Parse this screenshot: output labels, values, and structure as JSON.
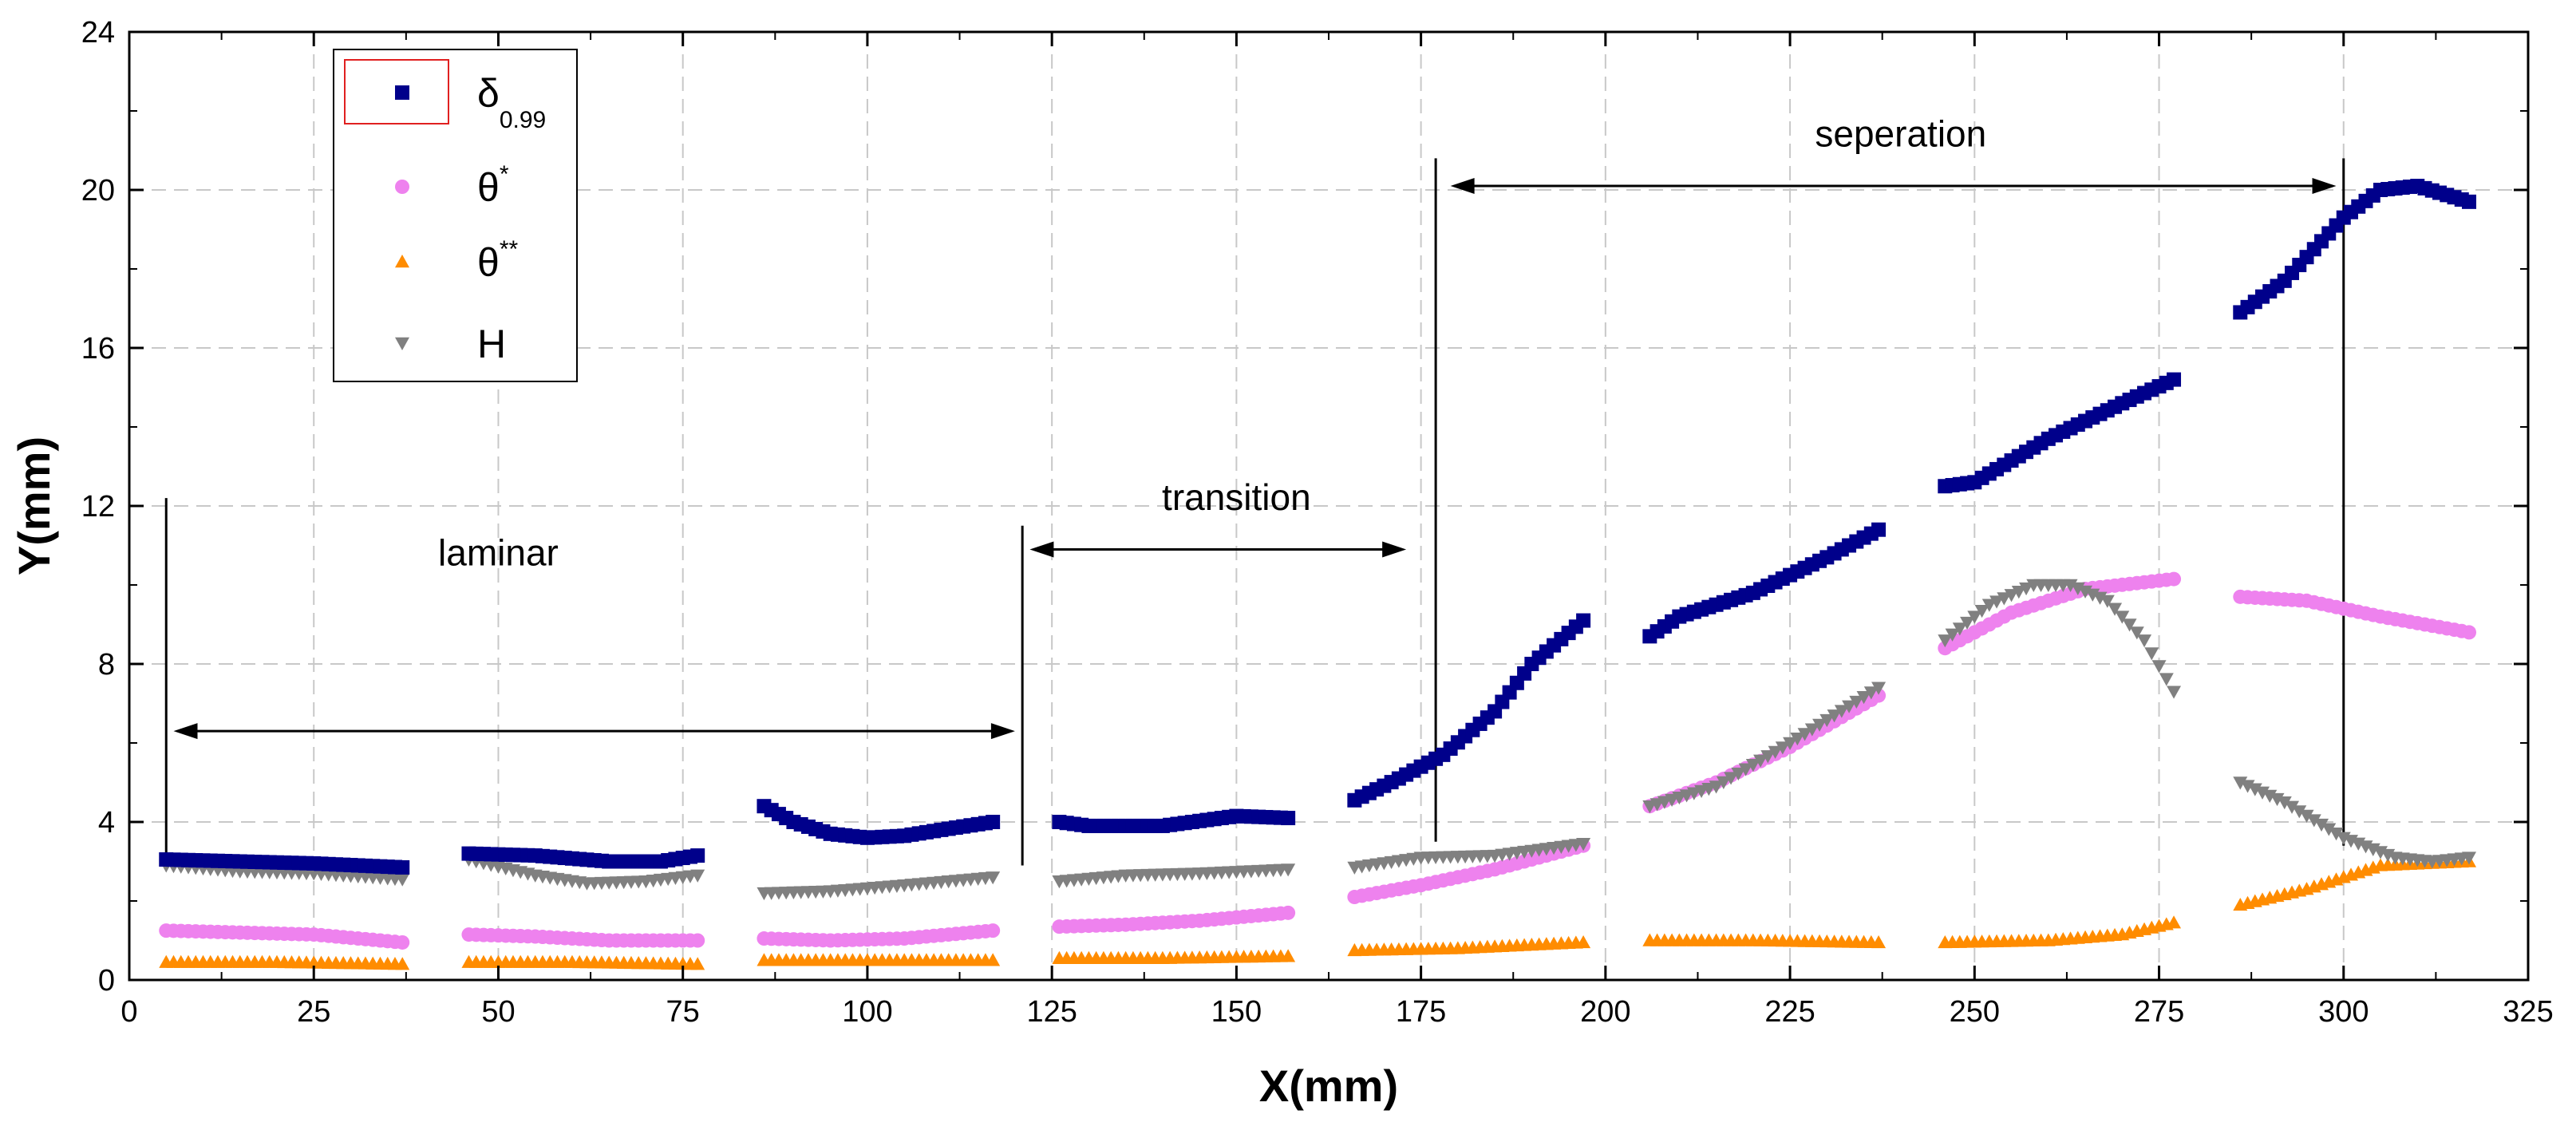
{
  "chart_data": {
    "type": "scatter",
    "title": "",
    "xlabel": "X(mm)",
    "ylabel": "Y(mm)",
    "xlim": [
      0,
      325
    ],
    "ylim": [
      0,
      24
    ],
    "xticks": [
      0,
      25,
      50,
      75,
      100,
      125,
      150,
      175,
      200,
      225,
      250,
      275,
      300,
      325
    ],
    "yticks": [
      0,
      4,
      8,
      12,
      16,
      20,
      24
    ],
    "grid": true,
    "legend_position": "top-left",
    "series": [
      {
        "name": "δ0.99",
        "label_main": "δ",
        "label_sub": "0.99",
        "label_sup": "",
        "color": "#00008B",
        "marker": "square",
        "segments": [
          [
            [
              5,
              3.05
            ],
            [
              15,
              3.0
            ],
            [
              25,
              2.95
            ],
            [
              37,
              2.85
            ]
          ],
          [
            [
              46,
              3.2
            ],
            [
              55,
              3.15
            ],
            [
              65,
              3.0
            ],
            [
              72,
              3.0
            ],
            [
              77,
              3.15
            ]
          ],
          [
            [
              86,
              4.4
            ],
            [
              90,
              4.0
            ],
            [
              95,
              3.7
            ],
            [
              100,
              3.6
            ],
            [
              105,
              3.65
            ],
            [
              110,
              3.8
            ],
            [
              117,
              4.0
            ]
          ],
          [
            [
              126,
              4.0
            ],
            [
              130,
              3.9
            ],
            [
              140,
              3.9
            ],
            [
              150,
              4.15
            ],
            [
              157,
              4.1
            ]
          ],
          [
            [
              166,
              4.55
            ],
            [
              172,
              5.1
            ],
            [
              178,
              5.7
            ],
            [
              185,
              6.8
            ],
            [
              190,
              8.0
            ],
            [
              197,
              9.1
            ]
          ],
          [
            [
              206,
              8.7
            ],
            [
              210,
              9.2
            ],
            [
              220,
              9.8
            ],
            [
              230,
              10.7
            ],
            [
              237,
              11.4
            ]
          ],
          [
            [
              246,
              12.5
            ],
            [
              250,
              12.6
            ],
            [
              260,
              13.7
            ],
            [
              270,
              14.6
            ],
            [
              277,
              15.2
            ]
          ],
          [
            [
              286,
              16.9
            ],
            [
              292,
              17.7
            ],
            [
              300,
              19.3
            ],
            [
              305,
              20.0
            ],
            [
              310,
              20.1
            ],
            [
              317,
              19.7
            ]
          ]
        ]
      },
      {
        "name": "θ*",
        "label_main": "θ",
        "label_sub": "",
        "label_sup": "*",
        "color": "#EE82EE",
        "marker": "circle",
        "segments": [
          [
            [
              5,
              1.25
            ],
            [
              15,
              1.2
            ],
            [
              25,
              1.15
            ],
            [
              37,
              0.95
            ]
          ],
          [
            [
              46,
              1.15
            ],
            [
              55,
              1.1
            ],
            [
              65,
              1.0
            ],
            [
              77,
              1.0
            ]
          ],
          [
            [
              86,
              1.05
            ],
            [
              95,
              1.0
            ],
            [
              105,
              1.05
            ],
            [
              117,
              1.25
            ]
          ],
          [
            [
              126,
              1.35
            ],
            [
              135,
              1.4
            ],
            [
              145,
              1.5
            ],
            [
              157,
              1.7
            ]
          ],
          [
            [
              166,
              2.1
            ],
            [
              175,
              2.4
            ],
            [
              185,
              2.8
            ],
            [
              197,
              3.4
            ]
          ],
          [
            [
              206,
              4.4
            ],
            [
              215,
              5.0
            ],
            [
              225,
              5.9
            ],
            [
              237,
              7.2
            ]
          ],
          [
            [
              246,
              8.4
            ],
            [
              255,
              9.3
            ],
            [
              265,
              9.9
            ],
            [
              277,
              10.15
            ]
          ],
          [
            [
              286,
              9.7
            ],
            [
              295,
              9.6
            ],
            [
              305,
              9.2
            ],
            [
              317,
              8.8
            ]
          ]
        ]
      },
      {
        "name": "θ**",
        "label_main": "θ",
        "label_sub": "",
        "label_sup": "**",
        "color": "#FF8C00",
        "marker": "triangle-up",
        "segments": [
          [
            [
              5,
              0.45
            ],
            [
              20,
              0.45
            ],
            [
              37,
              0.4
            ]
          ],
          [
            [
              46,
              0.45
            ],
            [
              60,
              0.45
            ],
            [
              77,
              0.4
            ]
          ],
          [
            [
              86,
              0.5
            ],
            [
              100,
              0.5
            ],
            [
              117,
              0.5
            ]
          ],
          [
            [
              126,
              0.55
            ],
            [
              140,
              0.55
            ],
            [
              157,
              0.6
            ]
          ],
          [
            [
              166,
              0.75
            ],
            [
              180,
              0.8
            ],
            [
              197,
              0.95
            ]
          ],
          [
            [
              206,
              1.0
            ],
            [
              220,
              1.0
            ],
            [
              237,
              0.95
            ]
          ],
          [
            [
              246,
              0.95
            ],
            [
              260,
              1.0
            ],
            [
              270,
              1.15
            ],
            [
              277,
              1.45
            ]
          ],
          [
            [
              286,
              1.9
            ],
            [
              295,
              2.3
            ],
            [
              305,
              2.9
            ],
            [
              317,
              3.0
            ]
          ]
        ]
      },
      {
        "name": "H",
        "label_main": "H",
        "label_sub": "",
        "label_sup": "",
        "color": "#808080",
        "marker": "triangle-down",
        "segments": [
          [
            [
              5,
              2.9
            ],
            [
              15,
              2.75
            ],
            [
              25,
              2.7
            ],
            [
              37,
              2.55
            ]
          ],
          [
            [
              46,
              3.05
            ],
            [
              55,
              2.65
            ],
            [
              62,
              2.45
            ],
            [
              70,
              2.5
            ],
            [
              77,
              2.65
            ]
          ],
          [
            [
              86,
              2.2
            ],
            [
              95,
              2.25
            ],
            [
              105,
              2.4
            ],
            [
              117,
              2.6
            ]
          ],
          [
            [
              126,
              2.5
            ],
            [
              135,
              2.65
            ],
            [
              145,
              2.7
            ],
            [
              157,
              2.8
            ]
          ],
          [
            [
              166,
              2.85
            ],
            [
              175,
              3.1
            ],
            [
              185,
              3.15
            ],
            [
              197,
              3.45
            ]
          ],
          [
            [
              206,
              4.4
            ],
            [
              215,
              4.9
            ],
            [
              225,
              6.0
            ],
            [
              237,
              7.4
            ]
          ],
          [
            [
              246,
              8.6
            ],
            [
              252,
              9.5
            ],
            [
              258,
              10.0
            ],
            [
              263,
              10.0
            ],
            [
              268,
              9.6
            ],
            [
              273,
              8.6
            ],
            [
              277,
              7.3
            ]
          ],
          [
            [
              286,
              5.0
            ],
            [
              292,
              4.5
            ],
            [
              300,
              3.6
            ],
            [
              307,
              3.1
            ],
            [
              312,
              3.0
            ],
            [
              317,
              3.1
            ]
          ]
        ]
      }
    ],
    "annotations": [
      {
        "text": "laminar",
        "x": 50,
        "y": 10.5
      },
      {
        "text": "transition",
        "x": 150,
        "y": 11.9
      },
      {
        "text": "seperation",
        "x": 240,
        "y": 21.1
      }
    ],
    "arrows": [
      {
        "x1": 6,
        "x2": 120,
        "y": 6.3
      },
      {
        "x1": 122,
        "x2": 173,
        "y": 10.9
      },
      {
        "x1": 179,
        "x2": 299,
        "y": 20.1
      }
    ],
    "dividers": [
      {
        "x": 5,
        "y1": 3.2,
        "y2": 12.2
      },
      {
        "x": 121,
        "y1": 2.9,
        "y2": 11.5
      },
      {
        "x": 177,
        "y1": 3.5,
        "y2": 20.8
      },
      {
        "x": 300,
        "y1": 3.4,
        "y2": 20.8
      }
    ]
  }
}
